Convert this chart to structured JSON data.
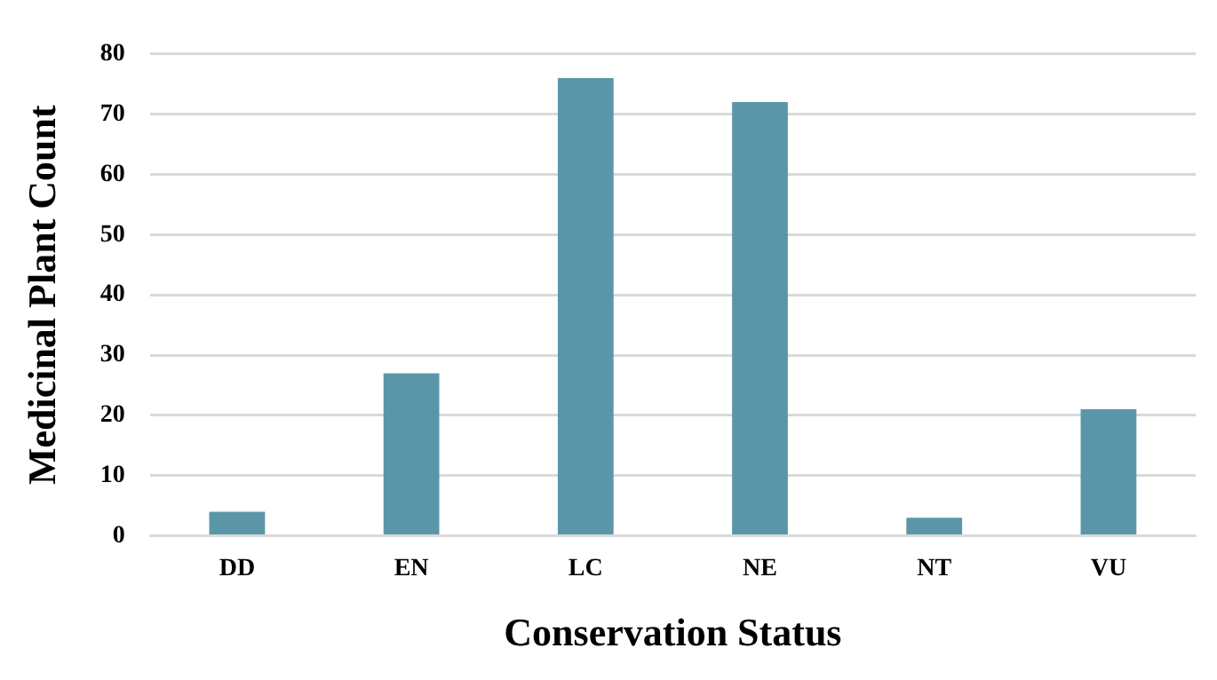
{
  "chart_data": {
    "type": "bar",
    "xlabel": "Conservation Status",
    "ylabel": "Medicinal Plant Count",
    "categories": [
      "DD",
      "EN",
      "LC",
      "NE",
      "NT",
      "VU"
    ],
    "values": [
      4,
      27,
      76,
      72,
      3,
      21
    ],
    "color": "#5b96a8",
    "ylim": [
      0,
      80
    ],
    "yticks": [
      0,
      10,
      20,
      30,
      40,
      50,
      60,
      70,
      80
    ],
    "grid": "y",
    "legend": false
  }
}
